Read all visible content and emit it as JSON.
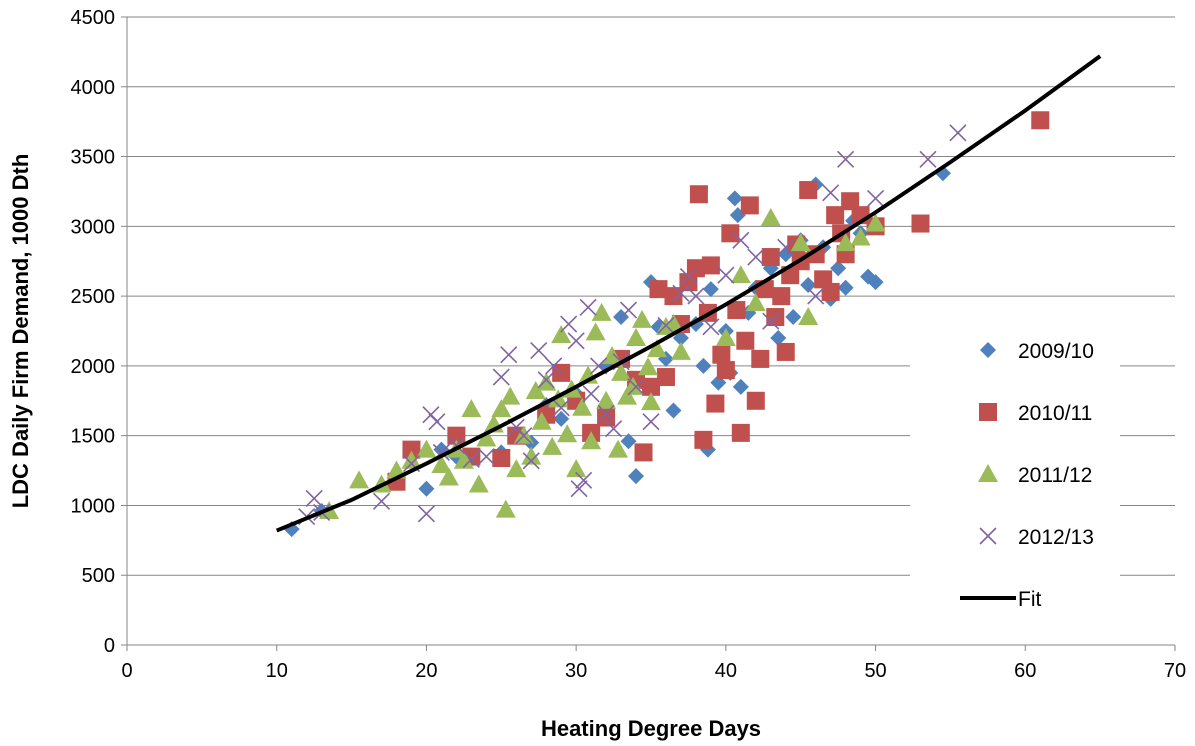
{
  "chart_data": {
    "type": "scatter",
    "xlabel": "Heating Degree Days",
    "ylabel": "LDC Daily Firm Demand, 1000 Dth",
    "xlim": [
      0,
      70
    ],
    "ylim": [
      0,
      4500
    ],
    "x_ticks": [
      "0",
      "10",
      "20",
      "30",
      "40",
      "50",
      "60",
      "70"
    ],
    "y_ticks": [
      "0",
      "500",
      "1000",
      "1500",
      "2000",
      "2500",
      "3000",
      "3500",
      "4000",
      "4500"
    ],
    "grid": "horizontal",
    "legend_position": "right",
    "series": [
      {
        "name": "2009/10",
        "marker": "diamond",
        "color": "#4F81BD",
        "points": [
          [
            11,
            830
          ],
          [
            13,
            960
          ],
          [
            18,
            1180
          ],
          [
            20,
            1120
          ],
          [
            21,
            1400
          ],
          [
            22,
            1350
          ],
          [
            25,
            1380
          ],
          [
            27,
            1450
          ],
          [
            28,
            1720
          ],
          [
            29,
            1620
          ],
          [
            30,
            1800
          ],
          [
            31,
            1500
          ],
          [
            32,
            2000
          ],
          [
            33,
            2350
          ],
          [
            33.5,
            1460
          ],
          [
            34,
            1210
          ],
          [
            35,
            2600
          ],
          [
            35.5,
            2280
          ],
          [
            36,
            2050
          ],
          [
            36.5,
            1680
          ],
          [
            37,
            2200
          ],
          [
            38,
            2300
          ],
          [
            38.5,
            2000
          ],
          [
            38.8,
            1400
          ],
          [
            39,
            2550
          ],
          [
            39.5,
            1880
          ],
          [
            40,
            2250
          ],
          [
            40.3,
            1950
          ],
          [
            40.6,
            3200
          ],
          [
            40.8,
            3080
          ],
          [
            41,
            1850
          ],
          [
            41.5,
            2380
          ],
          [
            42,
            2560
          ],
          [
            43,
            2700
          ],
          [
            43.5,
            2200
          ],
          [
            44,
            2800
          ],
          [
            44.5,
            2350
          ],
          [
            45,
            2900
          ],
          [
            45.5,
            2580
          ],
          [
            46,
            3300
          ],
          [
            46.5,
            2850
          ],
          [
            47,
            2480
          ],
          [
            47.5,
            2700
          ],
          [
            48,
            2560
          ],
          [
            48.5,
            3040
          ],
          [
            49,
            2950
          ],
          [
            49.5,
            2640
          ],
          [
            50,
            2600
          ],
          [
            54.5,
            3380
          ]
        ]
      },
      {
        "name": "2010/11",
        "marker": "square",
        "color": "#C0504D",
        "points": [
          [
            18,
            1170
          ],
          [
            19,
            1400
          ],
          [
            22,
            1500
          ],
          [
            23,
            1350
          ],
          [
            25,
            1340
          ],
          [
            26,
            1500
          ],
          [
            28,
            1650
          ],
          [
            29,
            1950
          ],
          [
            30,
            1750
          ],
          [
            31,
            1520
          ],
          [
            32,
            1630
          ],
          [
            33,
            2050
          ],
          [
            34,
            1900
          ],
          [
            34.5,
            1380
          ],
          [
            35,
            1850
          ],
          [
            35.5,
            2550
          ],
          [
            36,
            1920
          ],
          [
            36.5,
            2500
          ],
          [
            37,
            2300
          ],
          [
            37.5,
            2600
          ],
          [
            38,
            2700
          ],
          [
            38.2,
            3230
          ],
          [
            38.5,
            1470
          ],
          [
            38.8,
            2380
          ],
          [
            39,
            2720
          ],
          [
            39.3,
            1730
          ],
          [
            39.7,
            2080
          ],
          [
            40,
            1970
          ],
          [
            40.3,
            2950
          ],
          [
            40.7,
            2400
          ],
          [
            41,
            1520
          ],
          [
            41.3,
            2180
          ],
          [
            41.6,
            3150
          ],
          [
            42,
            1750
          ],
          [
            42.3,
            2050
          ],
          [
            42.6,
            2550
          ],
          [
            43,
            2780
          ],
          [
            43.3,
            2350
          ],
          [
            43.7,
            2500
          ],
          [
            44,
            2100
          ],
          [
            44.3,
            2650
          ],
          [
            44.7,
            2870
          ],
          [
            45,
            2750
          ],
          [
            45.5,
            3260
          ],
          [
            46,
            2800
          ],
          [
            46.5,
            2620
          ],
          [
            47,
            2530
          ],
          [
            47.3,
            3080
          ],
          [
            47.7,
            2950
          ],
          [
            48,
            2800
          ],
          [
            48.3,
            3180
          ],
          [
            49,
            3080
          ],
          [
            50,
            3000
          ],
          [
            53,
            3020
          ],
          [
            61,
            3760
          ]
        ]
      },
      {
        "name": "2011/12",
        "marker": "triangle",
        "color": "#9BBB59",
        "points": [
          [
            13.5,
            960
          ],
          [
            15.5,
            1180
          ],
          [
            17,
            1150
          ],
          [
            18,
            1250
          ],
          [
            19,
            1320
          ],
          [
            20,
            1400
          ],
          [
            21,
            1290
          ],
          [
            21.5,
            1200
          ],
          [
            22,
            1400
          ],
          [
            22.5,
            1320
          ],
          [
            23,
            1690
          ],
          [
            23.5,
            1150
          ],
          [
            24,
            1480
          ],
          [
            24.5,
            1580
          ],
          [
            25,
            1690
          ],
          [
            25.3,
            970
          ],
          [
            25.6,
            1780
          ],
          [
            26,
            1260
          ],
          [
            26.5,
            1500
          ],
          [
            27,
            1350
          ],
          [
            27.3,
            1820
          ],
          [
            27.7,
            1600
          ],
          [
            28,
            1880
          ],
          [
            28.4,
            1420
          ],
          [
            28.8,
            1760
          ],
          [
            29,
            2220
          ],
          [
            29.4,
            1510
          ],
          [
            29.7,
            1830
          ],
          [
            30,
            1260
          ],
          [
            30.4,
            1700
          ],
          [
            30.8,
            1930
          ],
          [
            31,
            1460
          ],
          [
            31.3,
            2240
          ],
          [
            31.7,
            2380
          ],
          [
            32,
            1750
          ],
          [
            32.4,
            2070
          ],
          [
            32.8,
            1400
          ],
          [
            33,
            1950
          ],
          [
            33.4,
            1780
          ],
          [
            33.8,
            1850
          ],
          [
            34,
            2200
          ],
          [
            34.4,
            2330
          ],
          [
            34.8,
            1990
          ],
          [
            35,
            1740
          ],
          [
            35.4,
            2120
          ],
          [
            36,
            2280
          ],
          [
            36.5,
            2300
          ],
          [
            37,
            2100
          ],
          [
            40,
            2200
          ],
          [
            41,
            2650
          ],
          [
            42,
            2450
          ],
          [
            43,
            3060
          ],
          [
            45,
            2880
          ],
          [
            45.5,
            2350
          ],
          [
            48,
            2880
          ],
          [
            49,
            2920
          ],
          [
            50,
            3020
          ]
        ]
      },
      {
        "name": "2012/13",
        "marker": "x",
        "color": "#8064A2",
        "points": [
          [
            12,
            920
          ],
          [
            12.5,
            1050
          ],
          [
            13,
            950
          ],
          [
            17,
            1030
          ],
          [
            19,
            1300
          ],
          [
            20,
            940
          ],
          [
            20.3,
            1650
          ],
          [
            20.7,
            1600
          ],
          [
            21,
            1380
          ],
          [
            22,
            1430
          ],
          [
            23,
            1330
          ],
          [
            24,
            1350
          ],
          [
            25,
            1920
          ],
          [
            25.5,
            2080
          ],
          [
            26,
            1560
          ],
          [
            26.5,
            1500
          ],
          [
            27,
            1320
          ],
          [
            27.5,
            2110
          ],
          [
            28,
            1900
          ],
          [
            28.5,
            2000
          ],
          [
            29,
            1700
          ],
          [
            29.5,
            2300
          ],
          [
            30,
            2180
          ],
          [
            30.2,
            1120
          ],
          [
            30.5,
            1180
          ],
          [
            30.8,
            2420
          ],
          [
            31,
            1800
          ],
          [
            31.5,
            2000
          ],
          [
            32,
            1660
          ],
          [
            32.5,
            1550
          ],
          [
            33,
            2030
          ],
          [
            33.5,
            2400
          ],
          [
            34,
            1850
          ],
          [
            35,
            1600
          ],
          [
            36,
            2290
          ],
          [
            37,
            2520
          ],
          [
            37.5,
            2640
          ],
          [
            38,
            2500
          ],
          [
            39,
            2280
          ],
          [
            40,
            2650
          ],
          [
            41,
            2900
          ],
          [
            42,
            2780
          ],
          [
            43,
            2320
          ],
          [
            44,
            2850
          ],
          [
            46,
            2500
          ],
          [
            47,
            3240
          ],
          [
            48,
            3480
          ],
          [
            50,
            3200
          ],
          [
            53.5,
            3480
          ],
          [
            55.5,
            3670
          ]
        ]
      },
      {
        "name": "Fit",
        "marker": "line",
        "color": "#000000",
        "points": [
          [
            10,
            820
          ],
          [
            15,
            1040
          ],
          [
            20,
            1300
          ],
          [
            25,
            1570
          ],
          [
            30,
            1850
          ],
          [
            35,
            2140
          ],
          [
            40,
            2440
          ],
          [
            45,
            2760
          ],
          [
            50,
            3100
          ],
          [
            55,
            3460
          ],
          [
            60,
            3830
          ],
          [
            65,
            4220
          ]
        ]
      }
    ]
  }
}
